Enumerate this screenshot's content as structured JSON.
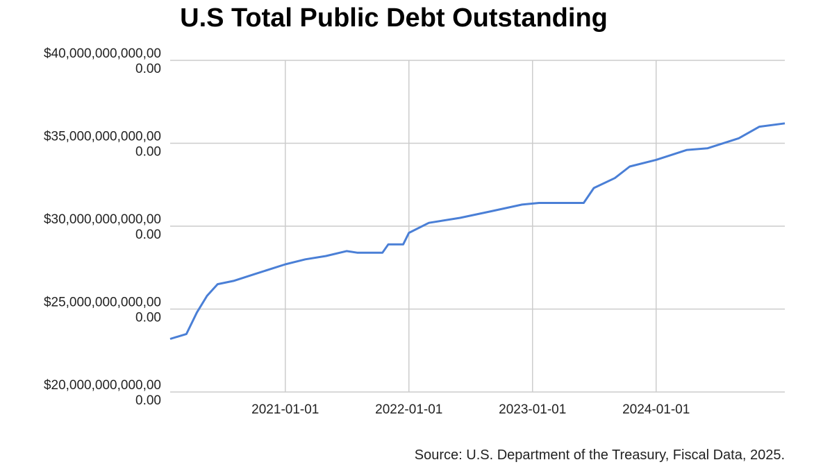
{
  "chart_data": {
    "type": "line",
    "title": "U.S Total Public Debt Outstanding",
    "source": "Source: U.S. Department of the Treasury, Fiscal Data, 2025.",
    "x": [
      "2020-01-27",
      "2020-03-15",
      "2020-04-15",
      "2020-05-15",
      "2020-06-15",
      "2020-08-01",
      "2020-10-01",
      "2021-01-01",
      "2021-03-01",
      "2021-05-01",
      "2021-07-01",
      "2021-08-01",
      "2021-10-15",
      "2021-11-01",
      "2021-12-15",
      "2022-01-01",
      "2022-03-01",
      "2022-06-01",
      "2022-09-01",
      "2022-12-01",
      "2023-01-20",
      "2023-06-01",
      "2023-07-01",
      "2023-09-01",
      "2023-10-15",
      "2024-01-01",
      "2024-04-01",
      "2024-06-01",
      "2024-09-01",
      "2024-11-01",
      "2025-01-15"
    ],
    "series": [
      {
        "name": "Total Public Debt Outstanding",
        "color": "#4a7fd6",
        "values": [
          23200000000000,
          23500000000000,
          24800000000000,
          25800000000000,
          26500000000000,
          26700000000000,
          27100000000000,
          27700000000000,
          28000000000000,
          28200000000000,
          28500000000000,
          28400000000000,
          28400000000000,
          28900000000000,
          28900000000000,
          29600000000000,
          30200000000000,
          30500000000000,
          30900000000000,
          31300000000000,
          31400000000000,
          31400000000000,
          32300000000000,
          32900000000000,
          33600000000000,
          34000000000000,
          34600000000000,
          34700000000000,
          35300000000000,
          36000000000000,
          36200000000000
        ]
      }
    ],
    "xlim": [
      "2020-01-27",
      "2025-01-15"
    ],
    "xticks": [
      "2021-01-01",
      "2022-01-01",
      "2023-01-01",
      "2024-01-01"
    ],
    "ylim": [
      20000000000000,
      40000000000000
    ],
    "yticks": [
      {
        "value": 20000000000000,
        "label": "$20,000,000,000,000.00"
      },
      {
        "value": 25000000000000,
        "label": "$25,000,000,000,000.00"
      },
      {
        "value": 30000000000000,
        "label": "$30,000,000,000,000.00"
      },
      {
        "value": 35000000000000,
        "label": "$35,000,000,000,000.00"
      },
      {
        "value": 40000000000000,
        "label": "$40,000,000,000,000.00"
      }
    ],
    "grid": true
  }
}
